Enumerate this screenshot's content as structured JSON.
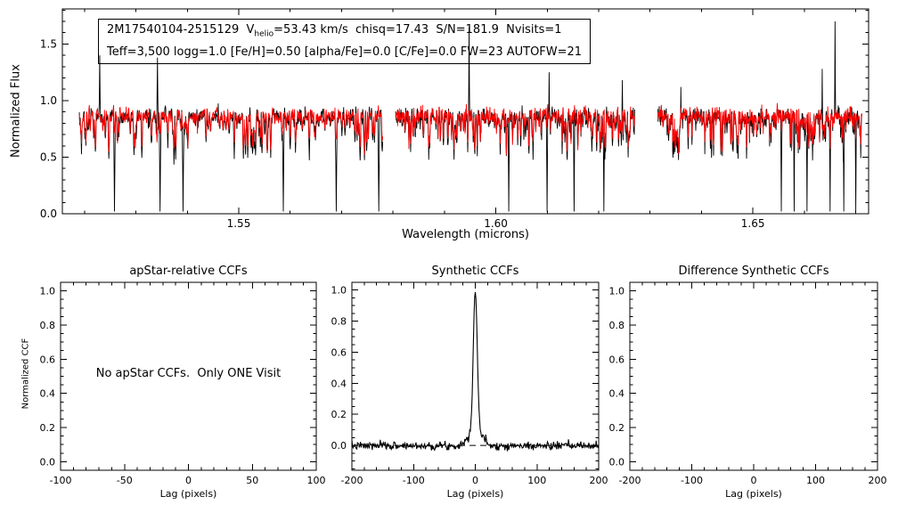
{
  "top_panel": {
    "ylabel": "Normalized Flux",
    "xlabel": "Wavelength (microns)",
    "annotation": {
      "line1_part1": "2M17540104-2515129  V",
      "line1_sub": "helio",
      "line1_part2": "=53.43 km/s  chisq=17.43  S/N=181.9  Nvisits=1",
      "line2": "Teff=3,500 logg=1.0 [Fe/H]=0.50 [alpha/Fe]=0.0 [C/Fe]=0.0 FW=23 AUTOFW=21"
    }
  },
  "panels": {
    "apstar": {
      "title": "apStar-relative CCFs",
      "xlabel": "Lag (pixels)",
      "ylabel": "Normalized CCF",
      "message": "No apStar CCFs.  Only ONE Visit"
    },
    "synthetic": {
      "title": "Synthetic CCFs",
      "xlabel": "Lag (pixels)"
    },
    "difference": {
      "title": "Difference Synthetic CCFs",
      "xlabel": "Lag (pixels)"
    }
  },
  "chart_data": [
    {
      "type": "line",
      "id": "spectrum",
      "title": "",
      "xlabel": "Wavelength (microns)",
      "ylabel": "Normalized Flux",
      "xlim": [
        1.5157,
        1.6725
      ],
      "ylim": [
        0.0,
        1.81
      ],
      "xticks": [
        1.55,
        1.6,
        1.65
      ],
      "yticks": [
        0.0,
        0.5,
        1.0,
        1.5
      ],
      "grid": false,
      "series": [
        {
          "name": "observed spectrum",
          "color": "#000000"
        },
        {
          "name": "best-fit synthetic spectrum",
          "color": "#ff0000"
        }
      ],
      "segments": [
        [
          1.519,
          1.578
        ],
        [
          1.5805,
          1.627
        ],
        [
          1.6315,
          1.6712
        ]
      ],
      "continuum_level": 0.9,
      "noise_sigma": 0.035,
      "deep_absorptions": [
        1.5258,
        1.5347,
        1.5392,
        1.5587,
        1.569,
        1.5772,
        1.6025,
        1.61,
        1.6152,
        1.621,
        1.6555,
        1.658,
        1.6605,
        1.665,
        1.6677,
        1.67
      ],
      "emission_spikes": [
        {
          "wl": 1.523,
          "h": 1.4
        },
        {
          "wl": 1.5342,
          "h": 1.38
        },
        {
          "wl": 1.5948,
          "h": 1.65
        },
        {
          "wl": 1.6104,
          "h": 1.25
        },
        {
          "wl": 1.6246,
          "h": 1.18
        },
        {
          "wl": 1.636,
          "h": 1.12
        },
        {
          "wl": 1.6635,
          "h": 1.28
        },
        {
          "wl": 1.666,
          "h": 1.7
        }
      ],
      "random_seed": 42,
      "annotation": {
        "star": "2M17540104-2515129",
        "vhelio_kms": 53.43,
        "chisq": 17.43,
        "sn": 181.9,
        "nvisits": 1,
        "teff": "3,500",
        "logg": 1.0,
        "fe_h": 0.5,
        "alpha_fe": 0.0,
        "c_fe": 0.0,
        "fw": 23,
        "autofw": 21
      }
    },
    {
      "type": "line",
      "id": "apstar_ccf",
      "title": "apStar-relative CCFs",
      "xlabel": "Lag (pixels)",
      "ylabel": "Normalized CCF",
      "xlim": [
        -100,
        100
      ],
      "ylim": [
        -0.05,
        1.05
      ],
      "xticks": [
        -100,
        -50,
        0,
        50,
        100
      ],
      "yticks": [
        0.0,
        0.2,
        0.4,
        0.6,
        0.8,
        1.0
      ],
      "grid": false,
      "series": [],
      "no_data_message": "No apStar CCFs.  Only ONE Visit"
    },
    {
      "type": "line",
      "id": "synthetic_ccf",
      "title": "Synthetic CCFs",
      "xlabel": "Lag (pixels)",
      "xlim": [
        -200,
        200
      ],
      "ylim": [
        -0.16,
        1.05
      ],
      "xticks": [
        -200,
        -100,
        0,
        100,
        200
      ],
      "yticks": [
        0.0,
        0.2,
        0.4,
        0.6,
        0.8,
        1.0
      ],
      "grid": false,
      "peak": {
        "center": 0,
        "amplitude": 1.0,
        "core_sigma": 3.2,
        "wing_sigma": 11,
        "wing_fraction": 0.1
      },
      "noise_amplitude": 0.013,
      "zero_line": {
        "y": 0,
        "style": "dashed"
      },
      "line_color": "#000000",
      "random_seed": 7
    },
    {
      "type": "line",
      "id": "difference_ccf",
      "title": "Difference Synthetic CCFs",
      "xlabel": "Lag (pixels)",
      "xlim": [
        -200,
        200
      ],
      "ylim": [
        -0.05,
        1.05
      ],
      "xticks": [
        -200,
        -100,
        0,
        100,
        200
      ],
      "yticks": [
        0.0,
        0.2,
        0.4,
        0.6,
        0.8,
        1.0
      ],
      "grid": false,
      "series": []
    }
  ]
}
